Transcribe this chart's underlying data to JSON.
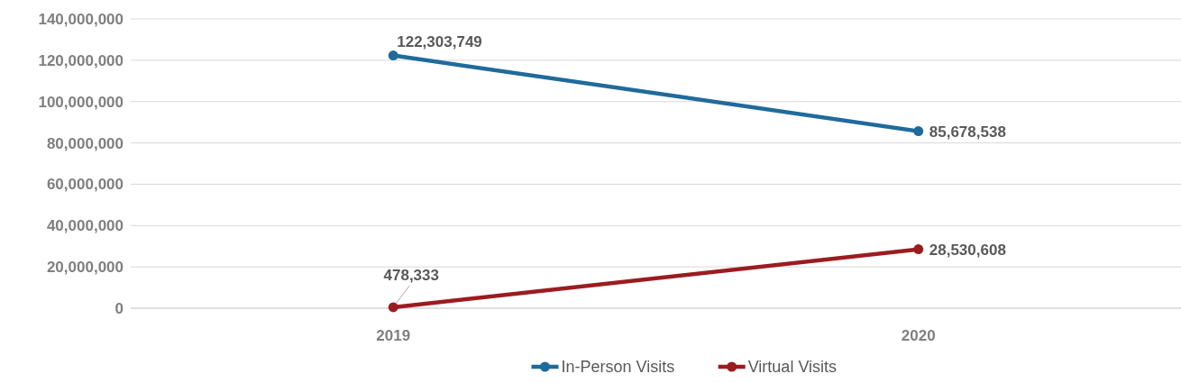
{
  "chart_data": {
    "type": "line",
    "categories": [
      "2019",
      "2020"
    ],
    "series": [
      {
        "name": "In-Person Visits",
        "color": "#1f6b9b",
        "values": [
          122303749,
          85678538
        ],
        "value_labels": [
          "122,303,749",
          "85,678,538"
        ]
      },
      {
        "name": "Virtual Visits",
        "color": "#9b1c20",
        "values": [
          478333,
          28530608
        ],
        "value_labels": [
          "478,333",
          "28,530,608"
        ]
      }
    ],
    "ylim": [
      0,
      140000000
    ],
    "yticks": [
      {
        "value": 0,
        "label": "0"
      },
      {
        "value": 20000000,
        "label": "20,000,000"
      },
      {
        "value": 40000000,
        "label": "40,000,000"
      },
      {
        "value": 60000000,
        "label": "60,000,000"
      },
      {
        "value": 80000000,
        "label": "80,000,000"
      },
      {
        "value": 100000000,
        "label": "100,000,000"
      },
      {
        "value": 120000000,
        "label": "120,000,000"
      },
      {
        "value": 140000000,
        "label": "140,000,000"
      }
    ],
    "grid": "y",
    "legend": "bottom",
    "marker": "circle",
    "line_style": "solid"
  }
}
